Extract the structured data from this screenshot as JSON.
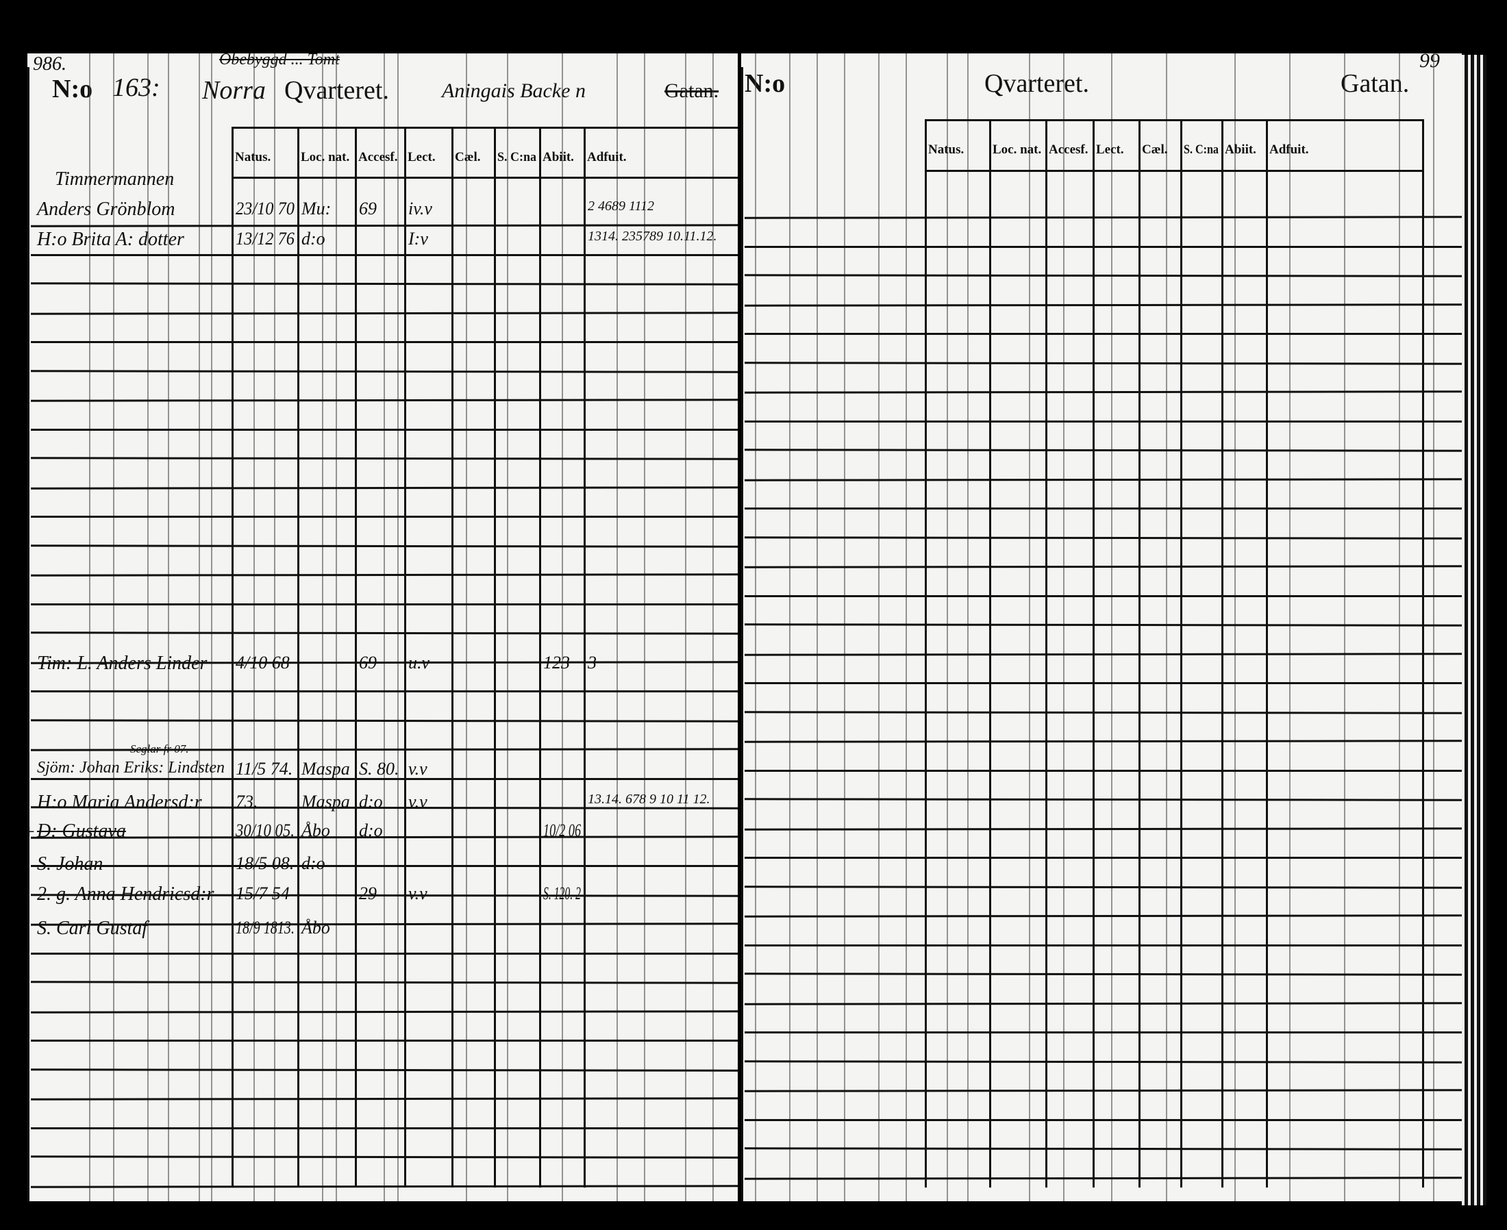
{
  "left_page": {
    "page_number": "986.",
    "no_label": "N:o",
    "no_value": "163:",
    "quarter_name": "Norra",
    "quarter_label": "Qvarteret.",
    "struck_note": "Obebyggd ... Tomt",
    "street_name": "Aningais Backe n",
    "street_label_struck": "Gatan.",
    "columns": [
      "Natus.",
      "Loc. nat.",
      "Accesf.",
      "Lect.",
      "Cæl.",
      "S. C:na",
      "Abiit.",
      "Adfuit."
    ],
    "entries": [
      {
        "name": "Timmermannen",
        "natus": "",
        "loc": "",
        "accesf": "",
        "lect": "",
        "abiit": "",
        "adfuit": ""
      },
      {
        "name": "Anders Grönblom",
        "natus": "23/10 70",
        "loc": "Mu:",
        "accesf": "69",
        "lect": "iv.v",
        "abiit": "",
        "adfuit": "2 4689 1112"
      },
      {
        "name": "H:o Brita A: dotter",
        "natus": "13/12 76",
        "loc": "d:o",
        "accesf": "",
        "lect": "I:v",
        "abiit": "",
        "adfuit": "1314. 235789 10.11.12."
      },
      {
        "name": "Tim: L. Anders Linder",
        "natus": "4/10 68",
        "loc": "",
        "accesf": "69",
        "lect": "u.v",
        "abiit": "123",
        "adfuit": "3"
      },
      {
        "name": "Sjöm: Johan Eriks: Lindsten",
        "note": "Seglar fr 07.",
        "natus": "11/5 74.",
        "loc": "Maspa",
        "accesf": "S. 80.",
        "lect": "v.v",
        "abiit": "",
        "adfuit": ""
      },
      {
        "name": "H:o Maria Andersd:r",
        "natus": "73.",
        "loc": "Maspa",
        "accesf": "d:o",
        "lect": "v.v",
        "abiit": "",
        "adfuit": "13.14. 678 9 10 11 12."
      },
      {
        "name": "D: Gustava",
        "margin": "+",
        "natus": "30/10 05.",
        "loc": "Åbo",
        "accesf": "d:o",
        "lect": "",
        "abiit": "10/2 06",
        "adfuit": ""
      },
      {
        "name": "S. Johan",
        "natus": "18/5 08.",
        "loc": "d:o",
        "accesf": "",
        "lect": "",
        "abiit": "",
        "adfuit": ""
      },
      {
        "name": "2. g. Anna Hendricsd:r",
        "natus": "15/7 54",
        "loc": "",
        "accesf": "29",
        "lect": "v.v",
        "abiit": "S. 120. 2",
        "adfuit": ""
      },
      {
        "name": "S. Carl Gustaf",
        "natus": "18/9 1813.",
        "loc": "Åbo",
        "accesf": "",
        "lect": "",
        "abiit": "",
        "adfuit": ""
      }
    ]
  },
  "right_page": {
    "page_number": "99",
    "no_label": "N:o",
    "quarter_label": "Qvarteret.",
    "street_label": "Gatan.",
    "columns": [
      "Natus.",
      "Loc. nat.",
      "Accesf.",
      "Lect.",
      "Cæl.",
      "S. C:na",
      "Abiit.",
      "Adfuit."
    ]
  }
}
